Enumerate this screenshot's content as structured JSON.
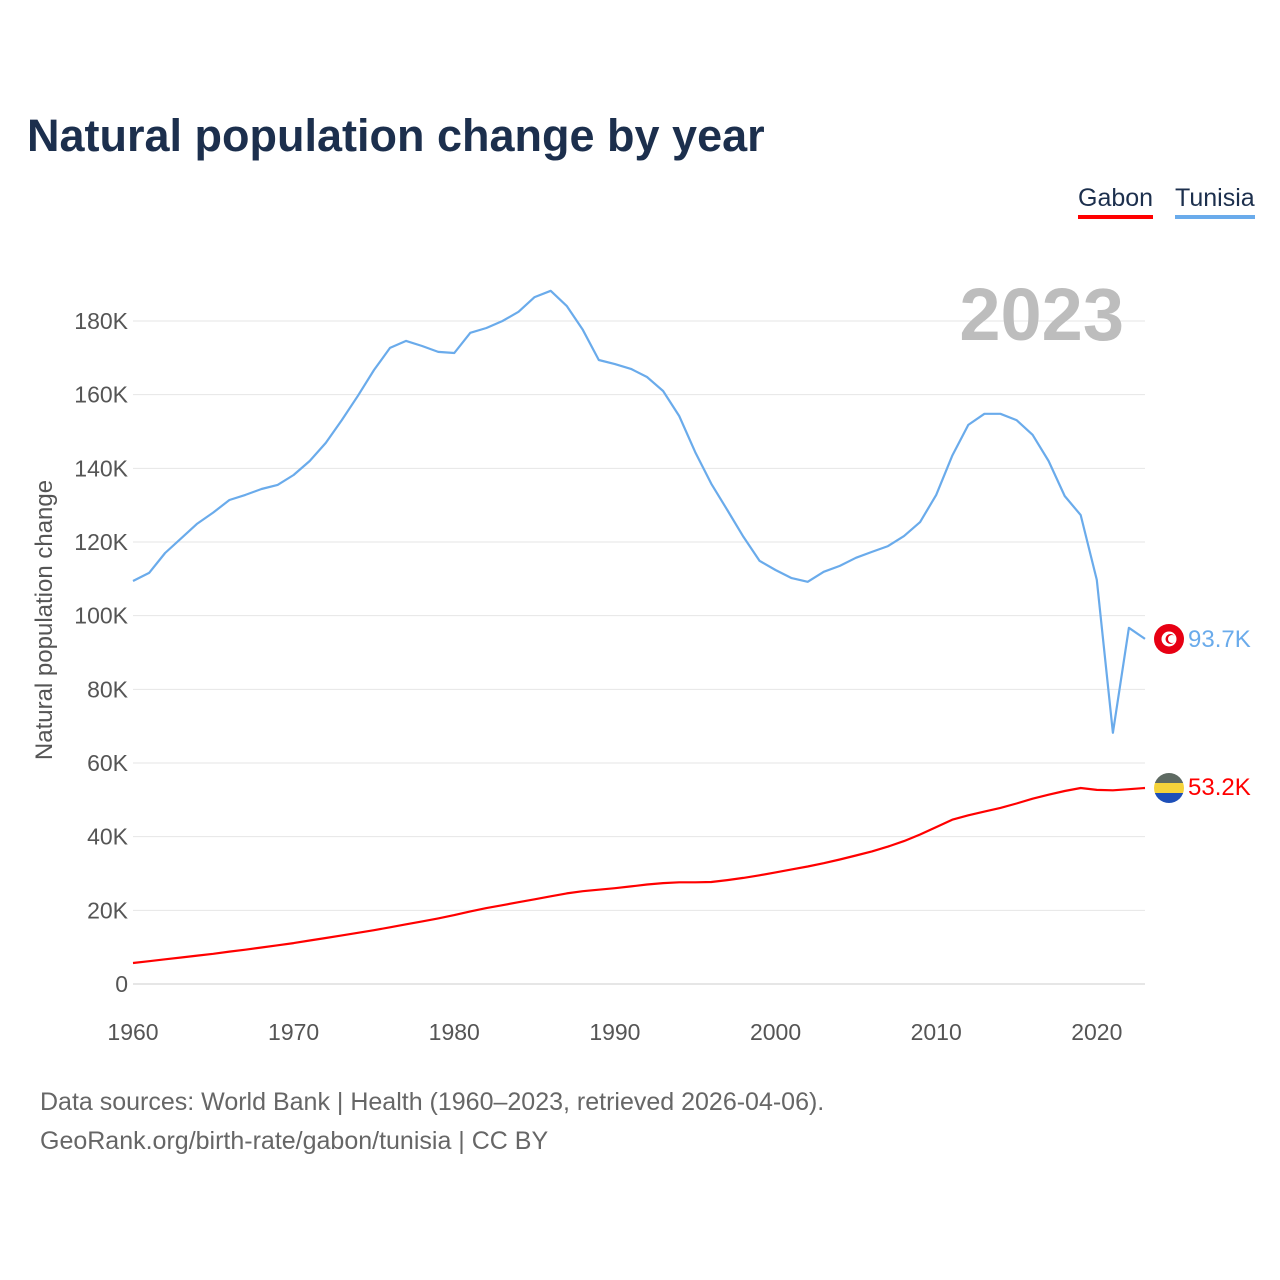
{
  "title": "Natural population change by year",
  "legend": [
    {
      "label": "Gabon",
      "color": "#ff0000"
    },
    {
      "label": "Tunisia",
      "color": "#6aabeb"
    }
  ],
  "year_label": "2023",
  "end_labels": {
    "tunisia": "93.7K",
    "gabon": "53.2K"
  },
  "footer": {
    "line1": "Data sources: World Bank | Health (1960–2023, retrieved 2026-04-06).",
    "line2": "GeoRank.org/birth-rate/gabon/tunisia | CC BY"
  },
  "chart_data": {
    "type": "line",
    "title": "Natural population change by year",
    "xlabel": "",
    "ylabel": "Natural population change",
    "xlim": [
      1960,
      2023
    ],
    "ylim": [
      0,
      180000
    ],
    "x_ticks": [
      "1960",
      "1970",
      "1980",
      "1990",
      "2000",
      "2010",
      "2020"
    ],
    "y_ticks": [
      "0",
      "20K",
      "40K",
      "60K",
      "80K",
      "100K",
      "120K",
      "140K",
      "160K",
      "180K"
    ],
    "grid": true,
    "legend_position": "top-right",
    "x_start": 1960,
    "series": [
      {
        "name": "Gabon",
        "color": "#ff0000",
        "unit": "thousands",
        "values": [
          5.7,
          6.2,
          6.7,
          7.2,
          7.7,
          8.2,
          8.8,
          9.3,
          9.9,
          10.5,
          11.1,
          11.8,
          12.5,
          13.2,
          13.9,
          14.6,
          15.4,
          16.2,
          17,
          17.8,
          18.7,
          19.7,
          20.6,
          21.4,
          22.2,
          23,
          23.8,
          24.6,
          25.2,
          25.6,
          26,
          26.5,
          27,
          27.4,
          27.6,
          27.6,
          27.7,
          28.2,
          28.8,
          29.5,
          30.3,
          31.1,
          31.9,
          32.8,
          33.8,
          34.9,
          36,
          37.3,
          38.8,
          40.6,
          42.6,
          44.6,
          45.8,
          46.8,
          47.8,
          49,
          50.3,
          51.4,
          52.4,
          53.2,
          52.7,
          52.6,
          52.9,
          53.2
        ]
      },
      {
        "name": "Tunisia",
        "color": "#6aabeb",
        "unit": "thousands",
        "values": [
          109.4,
          111.6,
          117,
          121,
          125,
          128,
          131.4,
          132.8,
          134.4,
          135.5,
          138.2,
          142,
          146.9,
          153.1,
          159.7,
          166.7,
          172.7,
          174.6,
          173.2,
          171.6,
          171.3,
          176.8,
          178.1,
          180,
          182.5,
          186.5,
          188.2,
          184.1,
          177.6,
          169.4,
          168.3,
          167,
          164.8,
          161,
          154.2,
          144.4,
          135.8,
          128.7,
          121.4,
          114.9,
          112.4,
          110.2,
          109.2,
          111.9,
          113.5,
          115.7,
          117.3,
          118.9,
          121.6,
          125.4,
          132.8,
          143.4,
          151.8,
          154.8,
          154.8,
          153.1,
          149.1,
          142,
          132.5,
          127.3,
          109.7,
          68.2,
          96.7,
          93.7
        ]
      }
    ]
  }
}
